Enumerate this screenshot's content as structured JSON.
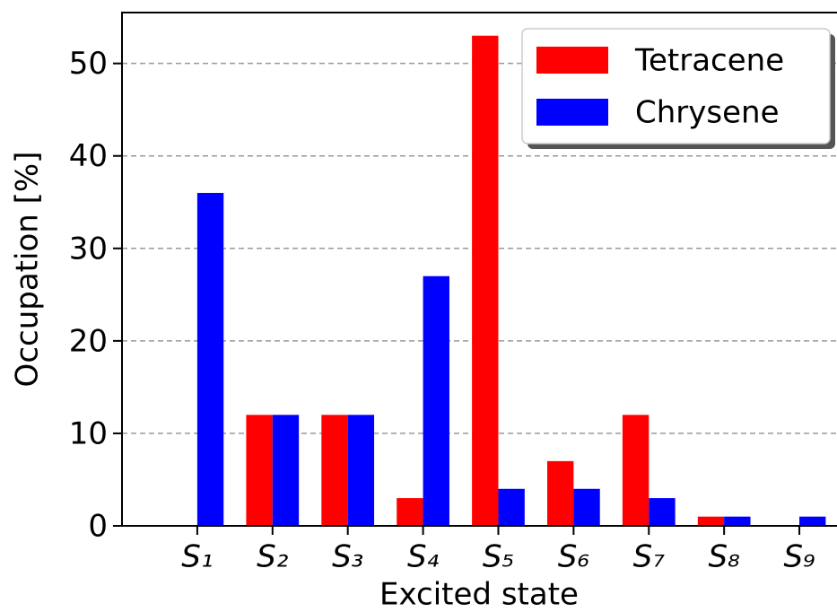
{
  "chart_data": {
    "type": "bar",
    "xlabel": "Excited state",
    "ylabel": "Occupation [%]",
    "categories": [
      "S₁",
      "S₂",
      "S₃",
      "S₄",
      "S₅",
      "S₆",
      "S₇",
      "S₈",
      "S₉"
    ],
    "series": [
      {
        "name": "Tetracene",
        "color": "#ff0000",
        "values": [
          0,
          12,
          12,
          3,
          53,
          7,
          12,
          1,
          0
        ]
      },
      {
        "name": "Chrysene",
        "color": "#0000ff",
        "values": [
          36,
          12,
          12,
          27,
          4,
          4,
          3,
          1,
          1
        ]
      }
    ],
    "xlim": [
      -1,
      8.5
    ],
    "ylim": [
      0,
      55.5
    ],
    "yticks": [
      0,
      10,
      20,
      30,
      40,
      50
    ],
    "grid": true,
    "legend": "upper right"
  }
}
